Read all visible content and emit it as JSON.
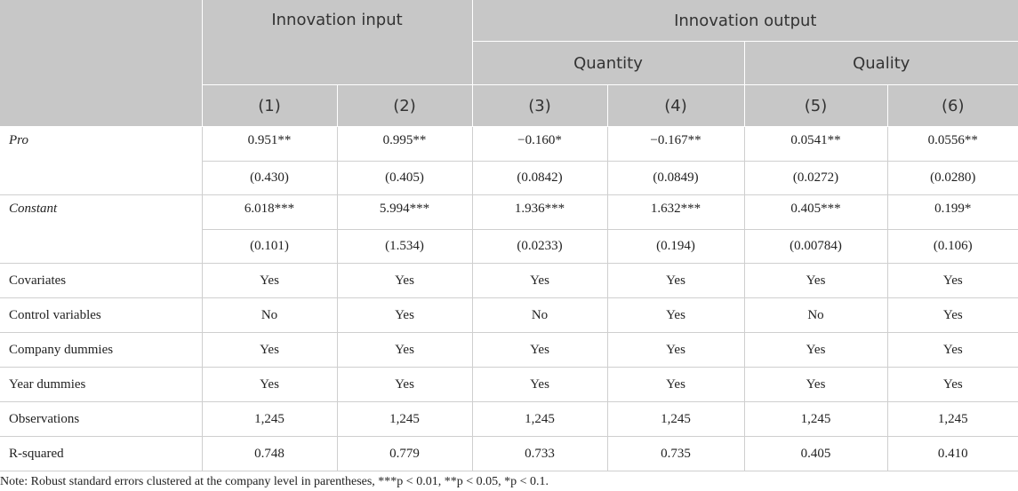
{
  "header": {
    "innovation_input": "Innovation input",
    "innovation_output": "Innovation output",
    "quantity": "Quantity",
    "quality": "Quality",
    "columns": [
      "(1)",
      "(2)",
      "(3)",
      "(4)",
      "(5)",
      "(6)"
    ]
  },
  "rows": {
    "pro": {
      "label": "Pro",
      "coef": [
        "0.951**",
        "0.995**",
        "−0.160*",
        "−0.167**",
        "0.0541**",
        "0.0556**"
      ],
      "se": [
        "(0.430)",
        "(0.405)",
        "(0.0842)",
        "(0.0849)",
        "(0.0272)",
        "(0.0280)"
      ]
    },
    "constant": {
      "label": "Constant",
      "coef": [
        "6.018***",
        "5.994***",
        "1.936***",
        "1.632***",
        "0.405***",
        "0.199*"
      ],
      "se": [
        "(0.101)",
        "(1.534)",
        "(0.0233)",
        "(0.194)",
        "(0.00784)",
        "(0.106)"
      ]
    },
    "covariates": {
      "label": "Covariates",
      "values": [
        "Yes",
        "Yes",
        "Yes",
        "Yes",
        "Yes",
        "Yes"
      ]
    },
    "control_variables": {
      "label": "Control variables",
      "values": [
        "No",
        "Yes",
        "No",
        "Yes",
        "No",
        "Yes"
      ]
    },
    "company_dummies": {
      "label": "Company dummies",
      "values": [
        "Yes",
        "Yes",
        "Yes",
        "Yes",
        "Yes",
        "Yes"
      ]
    },
    "year_dummies": {
      "label": "Year dummies",
      "values": [
        "Yes",
        "Yes",
        "Yes",
        "Yes",
        "Yes",
        "Yes"
      ]
    },
    "observations": {
      "label": "Observations",
      "values": [
        "1,245",
        "1,245",
        "1,245",
        "1,245",
        "1,245",
        "1,245"
      ]
    },
    "r_squared": {
      "label": "R-squared",
      "values": [
        "0.748",
        "0.779",
        "0.733",
        "0.735",
        "0.405",
        "0.410"
      ]
    }
  },
  "note": "Note: Robust standard errors clustered at the company level in parentheses, ***p < 0.01, **p < 0.05, *p < 0.1."
}
